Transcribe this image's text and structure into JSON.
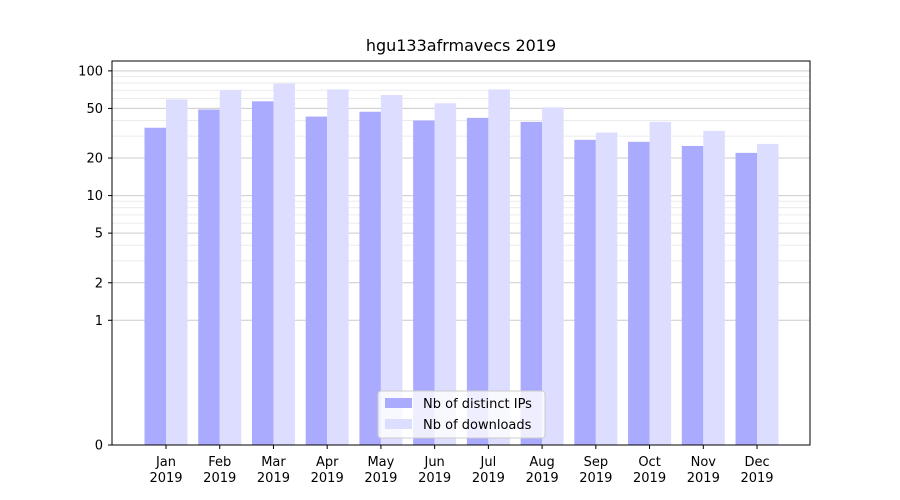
{
  "chart_data": {
    "type": "bar",
    "title": "hgu133afrmavecs 2019",
    "xlabel": "",
    "ylabel": "",
    "categories": [
      [
        "Jan",
        "2019"
      ],
      [
        "Feb",
        "2019"
      ],
      [
        "Mar",
        "2019"
      ],
      [
        "Apr",
        "2019"
      ],
      [
        "May",
        "2019"
      ],
      [
        "Jun",
        "2019"
      ],
      [
        "Jul",
        "2019"
      ],
      [
        "Aug",
        "2019"
      ],
      [
        "Sep",
        "2019"
      ],
      [
        "Oct",
        "2019"
      ],
      [
        "Nov",
        "2019"
      ],
      [
        "Dec",
        "2019"
      ]
    ],
    "series": [
      {
        "name": "Nb of distinct IPs",
        "color": "#aaaaff",
        "values": [
          35,
          49,
          57,
          43,
          47,
          40,
          42,
          39,
          28,
          27,
          25,
          22
        ]
      },
      {
        "name": "Nb of downloads",
        "color": "#ddddff",
        "values": [
          59,
          70,
          79,
          71,
          64,
          55,
          71,
          51,
          32,
          39,
          33,
          26
        ]
      }
    ],
    "y_scale": "symlog",
    "y_ticks": [
      0,
      1,
      2,
      5,
      10,
      20,
      50,
      100
    ],
    "y_tick_labels": [
      "0",
      "1",
      "2",
      "5",
      "10",
      "20",
      "50",
      "100"
    ],
    "ylim": [
      0,
      120
    ],
    "grid": true,
    "legend_position": "bottom-center"
  }
}
